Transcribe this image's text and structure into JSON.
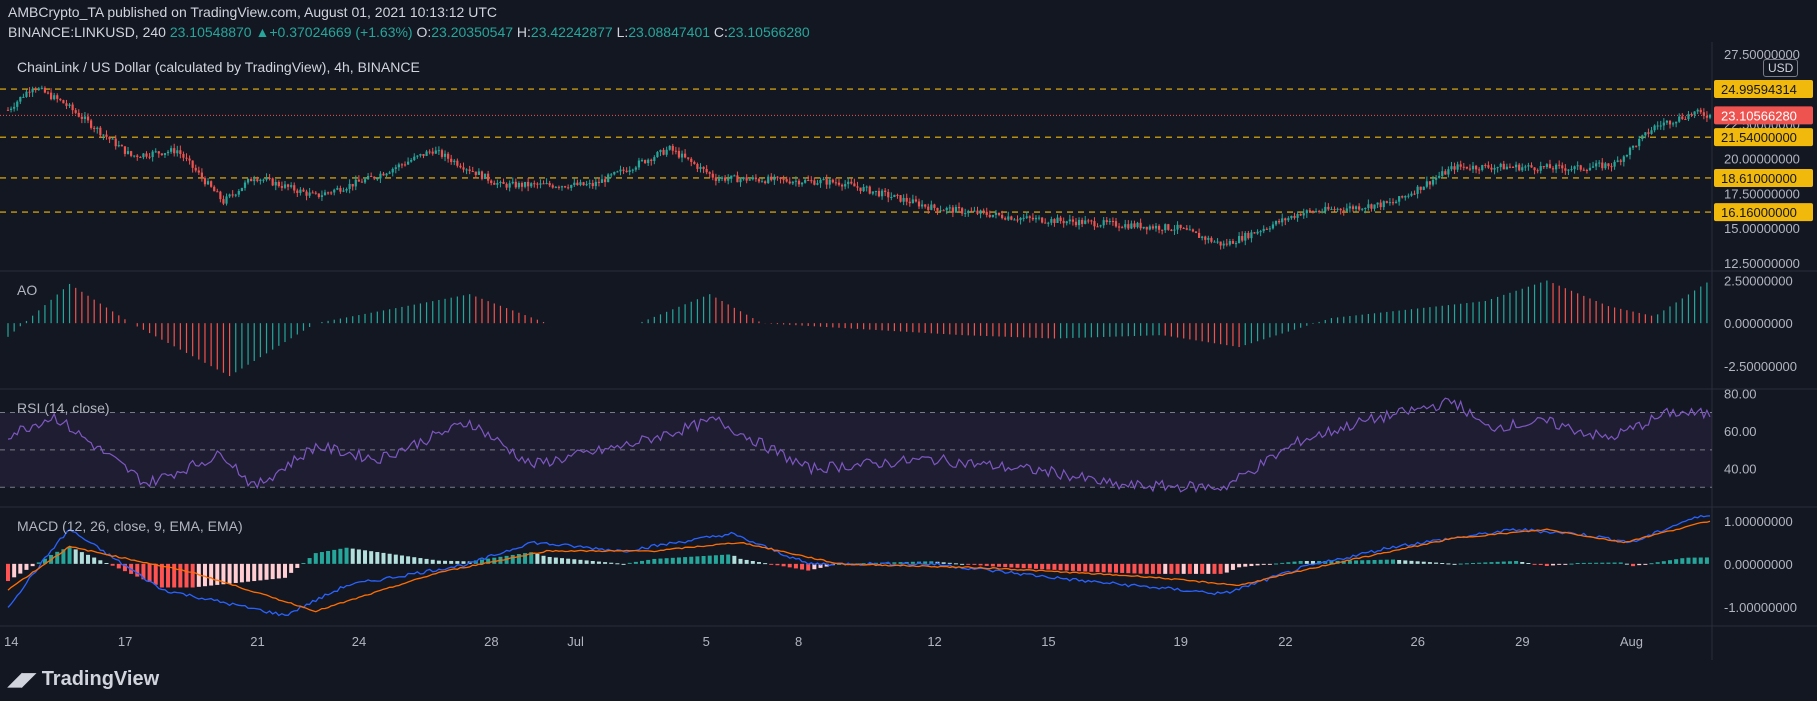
{
  "header": {
    "publisher": "AMBCrypto_TA",
    "published_text": "published on TradingView.com, August 01, 2021 10:13:12 UTC",
    "symbol": "BINANCE:LINKUSD, 240",
    "last": "23.10548870",
    "change": "+0.37024669 (+1.63%)",
    "o_label": "O:",
    "o": "23.20350547",
    "h_label": "H:",
    "h": "23.42242877",
    "l_label": "L:",
    "l": "23.08847401",
    "c_label": "C:",
    "c": "23.10566280"
  },
  "title": "ChainLink / US Dollar (calculated by TradingView), 4h, BINANCE",
  "currency": "USD",
  "panes": {
    "ao_label": "AO",
    "rsi_label": "RSI (14, close)",
    "macd_label": "MACD (12, 26, close, 9, EMA, EMA)"
  },
  "brand": {
    "logo": "TV-logo-icon",
    "text": "TradingView"
  },
  "colors": {
    "background": "#131722",
    "up": "#26a69a",
    "down": "#ef5350",
    "level": "#f0b90b",
    "rsi": "#7e57c2",
    "macd": "#2962ff",
    "signal": "#ff6d00"
  },
  "chart_data": [
    {
      "type": "candlestick",
      "title": "ChainLink / US Dollar (calculated by TradingView), 4h, BINANCE",
      "x_ticks": [
        "14",
        "17",
        "21",
        "24",
        "28",
        "Jul",
        "5",
        "8",
        "12",
        "15",
        "19",
        "22",
        "26",
        "29",
        "Aug"
      ],
      "y_ticks": [
        "27.50000000",
        "25.00000000",
        "22.50000000",
        "20.00000000",
        "17.50000000",
        "15.00000000",
        "12.50000000"
      ],
      "ylim": [
        12.0,
        27.8
      ],
      "horizontal_levels": [
        24.99594314,
        21.54,
        18.61,
        16.16
      ],
      "level_labels": [
        "24.99594314",
        "21.54000000",
        "18.61000000",
        "16.16000000"
      ],
      "last_price": 23.1056628,
      "last_price_label": "23.10566280",
      "close_path": [
        [
          0,
          23.5
        ],
        [
          8,
          25.2
        ],
        [
          18,
          24.0
        ],
        [
          40,
          20.2
        ],
        [
          55,
          20.6
        ],
        [
          70,
          16.9
        ],
        [
          80,
          18.7
        ],
        [
          100,
          17.3
        ],
        [
          118,
          18.6
        ],
        [
          138,
          20.6
        ],
        [
          160,
          18.1
        ],
        [
          190,
          18.1
        ],
        [
          215,
          20.7
        ],
        [
          230,
          18.6
        ],
        [
          270,
          18.3
        ],
        [
          300,
          16.5
        ],
        [
          330,
          15.7
        ],
        [
          380,
          15.0
        ],
        [
          395,
          13.8
        ],
        [
          420,
          16.1
        ],
        [
          450,
          16.8
        ],
        [
          470,
          19.4
        ],
        [
          490,
          19.4
        ],
        [
          510,
          19.3
        ],
        [
          522,
          19.6
        ],
        [
          535,
          22.3
        ],
        [
          548,
          23.3
        ],
        [
          553,
          23.1
        ]
      ]
    },
    {
      "type": "bar",
      "name": "AO",
      "y_ticks": [
        "2.50000000",
        "0.00000000",
        "-2.50000000"
      ],
      "ylim": [
        -3.8,
        3.0
      ],
      "path": [
        [
          0,
          -0.8
        ],
        [
          20,
          2.3
        ],
        [
          40,
          0.0
        ],
        [
          72,
          -3.1
        ],
        [
          100,
          0.0
        ],
        [
          150,
          1.7
        ],
        [
          175,
          0.0
        ],
        [
          205,
          0.0
        ],
        [
          228,
          1.7
        ],
        [
          245,
          0.0
        ],
        [
          310,
          -0.7
        ],
        [
          340,
          -0.9
        ],
        [
          375,
          -0.7
        ],
        [
          400,
          -1.4
        ],
        [
          430,
          0.3
        ],
        [
          480,
          1.3
        ],
        [
          500,
          2.5
        ],
        [
          520,
          1.0
        ],
        [
          535,
          0.4
        ],
        [
          553,
          2.5
        ]
      ]
    },
    {
      "type": "line",
      "name": "RSI",
      "y_ticks": [
        "80.00",
        "60.00",
        "40.00"
      ],
      "ylim": [
        20,
        82
      ],
      "bands": [
        30,
        50,
        70
      ],
      "path": [
        [
          0,
          58
        ],
        [
          15,
          68
        ],
        [
          45,
          32
        ],
        [
          70,
          48
        ],
        [
          80,
          30
        ],
        [
          100,
          52
        ],
        [
          120,
          45
        ],
        [
          150,
          65
        ],
        [
          170,
          42
        ],
        [
          200,
          52
        ],
        [
          230,
          66
        ],
        [
          260,
          40
        ],
        [
          300,
          45
        ],
        [
          340,
          38
        ],
        [
          360,
          31
        ],
        [
          395,
          30
        ],
        [
          420,
          55
        ],
        [
          440,
          65
        ],
        [
          470,
          76
        ],
        [
          480,
          62
        ],
        [
          500,
          65
        ],
        [
          520,
          56
        ],
        [
          540,
          70
        ],
        [
          553,
          69
        ]
      ]
    },
    {
      "type": "line",
      "name": "MACD",
      "y_ticks": [
        "1.00000000",
        "0.00000000",
        "-1.00000000"
      ],
      "ylim": [
        -1.4,
        1.3
      ],
      "macd_path": [
        [
          0,
          -1.0
        ],
        [
          15,
          0.4
        ],
        [
          20,
          0.8
        ],
        [
          50,
          -0.6
        ],
        [
          90,
          -1.2
        ],
        [
          110,
          -0.5
        ],
        [
          150,
          0.0
        ],
        [
          170,
          0.5
        ],
        [
          200,
          0.3
        ],
        [
          235,
          0.7
        ],
        [
          260,
          0.0
        ],
        [
          300,
          0.0
        ],
        [
          350,
          -0.4
        ],
        [
          395,
          -0.7
        ],
        [
          420,
          -0.1
        ],
        [
          450,
          0.4
        ],
        [
          490,
          0.8
        ],
        [
          510,
          0.7
        ],
        [
          528,
          0.5
        ],
        [
          545,
          1.0
        ],
        [
          553,
          1.15
        ]
      ],
      "signal_path": [
        [
          0,
          -0.6
        ],
        [
          20,
          0.4
        ],
        [
          60,
          -0.2
        ],
        [
          100,
          -1.1
        ],
        [
          140,
          -0.2
        ],
        [
          175,
          0.3
        ],
        [
          210,
          0.3
        ],
        [
          238,
          0.5
        ],
        [
          270,
          0.0
        ],
        [
          320,
          -0.1
        ],
        [
          370,
          -0.3
        ],
        [
          400,
          -0.5
        ],
        [
          430,
          0.0
        ],
        [
          470,
          0.6
        ],
        [
          500,
          0.8
        ],
        [
          525,
          0.5
        ],
        [
          553,
          1.0
        ]
      ]
    }
  ]
}
